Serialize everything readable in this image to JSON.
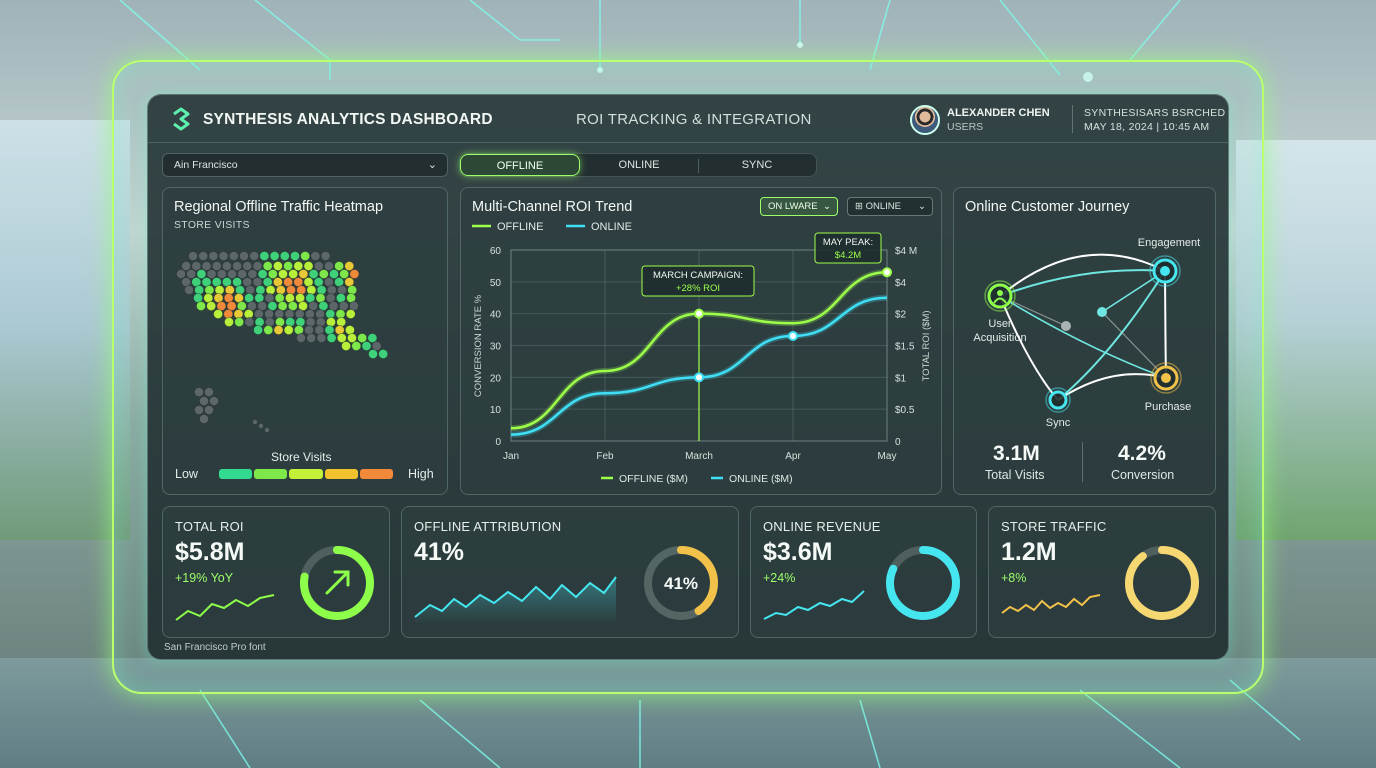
{
  "header": {
    "app_title": "SYNTHESIS ANALYTICS DASHBOARD",
    "subtitle": "ROI TRACKING & INTEGRATION",
    "user_name": "ALEXANDER CHEN",
    "user_role": "USERS",
    "system_name": "SYNTHESISARS BSRCHED",
    "datetime": "MAY 18, 2024 | 10:45 AM"
  },
  "controls": {
    "location": "Ain Francisco",
    "tabs": [
      {
        "label": "OFFLINE",
        "active": true
      },
      {
        "label": "ONLINE",
        "active": false
      },
      {
        "label": "SYNC",
        "active": false
      }
    ]
  },
  "heatmap": {
    "title": "Regional Offline Traffic Heatmap",
    "subtitle": "STORE VISITS",
    "legend_title": "Store Visits",
    "legend_low": "Low",
    "legend_high": "High",
    "legend_colors": [
      "#33d98f",
      "#7ee84b",
      "#c4f03a",
      "#f2c12e",
      "#f08a3a"
    ]
  },
  "roi_chart": {
    "title": "Multi-Channel ROI Trend",
    "legend_top": [
      "OFFLINE",
      "ONLINE"
    ],
    "dropdown_1": "ON LWARE",
    "dropdown_2": "ONLINE",
    "annotation_march": [
      "MARCH CAMPAIGN:",
      "+28% ROI"
    ],
    "annotation_may": [
      "MAY PEAK:",
      "$4.2M"
    ],
    "legend_bottom": [
      "OFFLINE ($M)",
      "ONLINE ($M)"
    ]
  },
  "chart_data": {
    "type": "line",
    "title": "Multi-Channel ROI Trend",
    "x": [
      "Jan",
      "Feb",
      "March",
      "Apr",
      "May"
    ],
    "ylabel": "CONVERSION RATE %",
    "y2label": "TOTAL ROI ($M)",
    "ylim": [
      0,
      60
    ],
    "yticks": [
      0,
      10,
      20,
      30,
      40,
      50,
      60
    ],
    "y2ticks": [
      "0",
      "$0.5",
      "$1",
      "$1.5",
      "$2",
      "$4",
      "$4 M"
    ],
    "grid": true,
    "series": [
      {
        "name": "OFFLINE ($M)",
        "color": "#9dff4a",
        "values": [
          4,
          22,
          40,
          37,
          53
        ]
      },
      {
        "name": "ONLINE ($M)",
        "color": "#3fe0f5",
        "values": [
          2,
          15,
          20,
          33,
          45
        ]
      }
    ],
    "annotations": [
      {
        "x": "March",
        "text": "MARCH CAMPAIGN: +28% ROI"
      },
      {
        "x": "May",
        "text": "MAY PEAK: $4.2M"
      }
    ]
  },
  "journey": {
    "title": "Online Customer Journey",
    "nodes": [
      "User Acquisition",
      "Engagement",
      "Sync",
      "Purchase"
    ],
    "stat_1_value": "3.1M",
    "stat_1_label": "Total Visits",
    "stat_2_value": "4.2%",
    "stat_2_label": "Conversion"
  },
  "kpis": [
    {
      "label": "TOTAL ROI",
      "value": "$5.8M",
      "change": "+19% YoY",
      "ring_pct": 0.78,
      "color": "#8dff4a"
    },
    {
      "label": "OFFLINE ATTRIBUTION",
      "value": "41%",
      "change": "",
      "ring_label": "41%",
      "ring_pct": 0.41,
      "color": "#f2c14a"
    },
    {
      "label": "ONLINE REVENUE",
      "value": "$3.6M",
      "change": "+24%",
      "ring_pct": 0.82,
      "color": "#45e6f0"
    },
    {
      "label": "STORE TRAFFIC",
      "value": "1.2M",
      "change": "+8%",
      "ring_pct": 0.9,
      "color": "#f6d873"
    }
  ],
  "footer_note": "San Francisco Pro font"
}
